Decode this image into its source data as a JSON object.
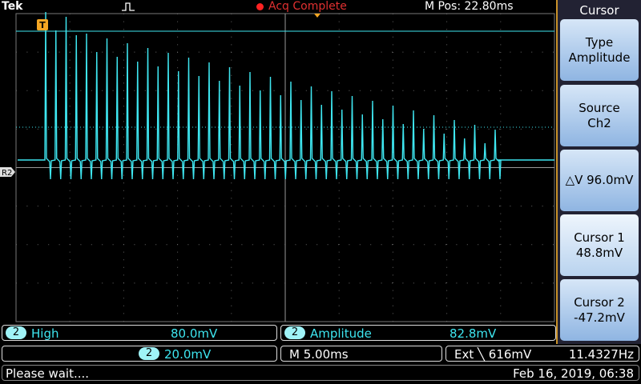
{
  "header": {
    "brand": "Tek",
    "status": "Acq Complete",
    "position": "M Pos: 22.80ms"
  },
  "graticule": {
    "reference_label": "R2",
    "trigger_marker": "T"
  },
  "menu": {
    "title": "Cursor",
    "buttons": [
      [
        "Type",
        "Amplitude"
      ],
      [
        "Source",
        "Ch2"
      ],
      [
        "△V 96.0mV"
      ],
      [
        "Cursor 1",
        "48.8mV"
      ],
      [
        "Cursor 2",
        "-47.2mV"
      ]
    ]
  },
  "measurements": [
    {
      "channel": "2",
      "name": "High",
      "value": "80.0mV"
    },
    {
      "channel": "2",
      "name": "Amplitude",
      "value": "82.8mV"
    }
  ],
  "status": {
    "channel": "2",
    "scale": "20.0mV",
    "timebase": "M 5.00ms",
    "trigger": "Ext ╲ 616mV",
    "frequency": "11.4327Hz",
    "message": "Please wait....",
    "datetime": "Feb 16, 2019, 06:38"
  }
}
